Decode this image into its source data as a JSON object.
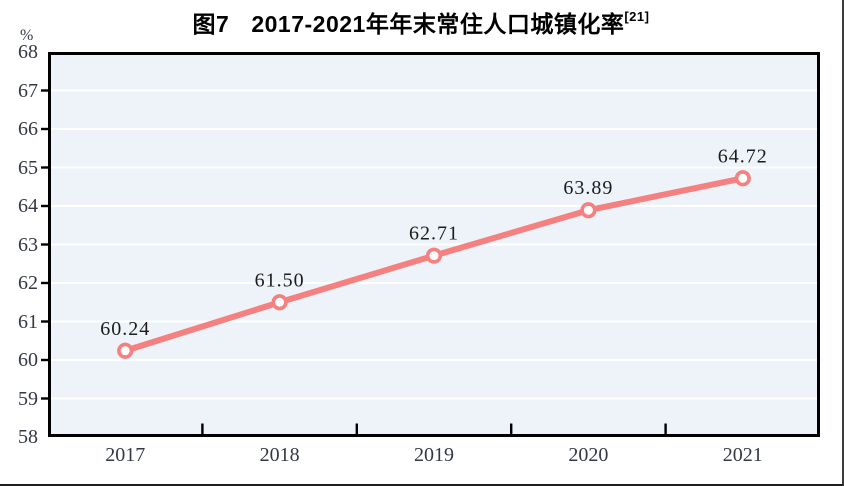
{
  "header": {
    "title_prefix": "图7",
    "title_main": "2017-2021年年末常住人口城镇化率",
    "title_sup": "[21]"
  },
  "chart_data": {
    "type": "line",
    "title": "图7 2017-2021年年末常住人口城镇化率[21]",
    "title_superscript": "[21]",
    "xlabel": "",
    "ylabel": "%",
    "categories": [
      "2017",
      "2018",
      "2019",
      "2020",
      "2021"
    ],
    "series": [
      {
        "name": "年末常住人口城镇化率",
        "values": [
          60.24,
          61.5,
          62.71,
          63.89,
          64.72
        ],
        "point_labels": [
          "60.24",
          "61.50",
          "62.71",
          "63.89",
          "64.72"
        ]
      }
    ],
    "ylim": [
      58,
      68
    ],
    "ytick_step": 1,
    "yticks": [
      58,
      59,
      60,
      61,
      62,
      63,
      64,
      65,
      66,
      67,
      68
    ],
    "grid": true,
    "legend_position": "none",
    "marker_style": "open-circle",
    "colors": {
      "line": "#f58080",
      "marker_fill": "#ffffff",
      "marker_stroke": "#f58080",
      "plot_background": "#edf3f8",
      "gridline": "#ffffff",
      "axis_border": "#000000",
      "tick": "#000000",
      "axis_text": "#333944",
      "data_label": "#1c1c1c",
      "title_text": "#000000"
    }
  }
}
